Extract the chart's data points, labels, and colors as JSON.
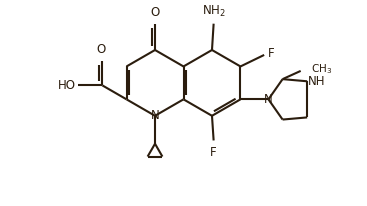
{
  "background": "#ffffff",
  "line_color": "#2b1d0e",
  "line_width": 1.5,
  "font_size": 8.5,
  "fig_width": 3.67,
  "fig_height": 2.06,
  "dpi": 100,
  "xlim": [
    -1.5,
    8.5
  ],
  "ylim": [
    -2.5,
    3.5
  ]
}
